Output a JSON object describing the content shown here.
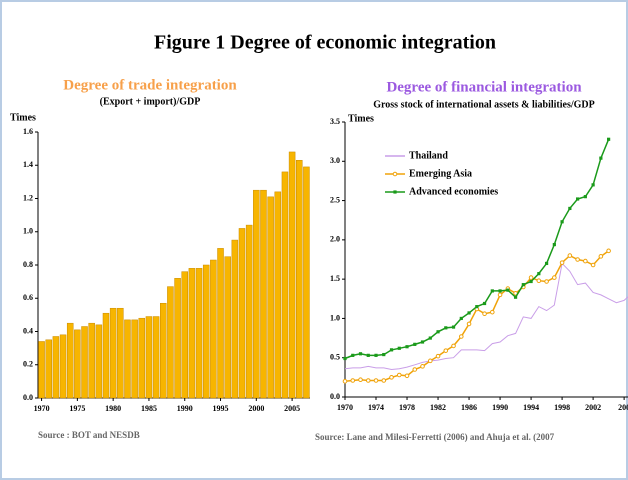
{
  "title": "Figure 1  Degree of economic integration",
  "chart_data": [
    {
      "type": "bar",
      "title": "Degree of trade integration",
      "subtitle": "(Export + import)/GDP",
      "y_label": "Times",
      "source": "Source : BOT and NESDB",
      "color": "#f7b500",
      "categories": [
        "1970",
        null,
        null,
        null,
        null,
        "1975",
        null,
        null,
        null,
        null,
        "1980",
        null,
        null,
        null,
        null,
        "1985",
        null,
        null,
        null,
        null,
        "1990",
        null,
        null,
        null,
        null,
        "1995",
        null,
        null,
        null,
        null,
        "2000",
        null,
        null,
        null,
        null,
        "2005",
        null,
        null
      ],
      "values": [
        0.34,
        0.35,
        0.37,
        0.38,
        0.45,
        0.41,
        0.43,
        0.45,
        0.44,
        0.51,
        0.54,
        0.54,
        0.47,
        0.47,
        0.48,
        0.49,
        0.49,
        0.57,
        0.67,
        0.72,
        0.76,
        0.78,
        0.78,
        0.8,
        0.83,
        0.9,
        0.85,
        0.95,
        1.02,
        1.04,
        1.25,
        1.25,
        1.21,
        1.24,
        1.36,
        1.48,
        1.43,
        1.39
      ],
      "ylim": [
        0,
        1.6
      ],
      "yticks": [
        {
          "value": 0,
          "label": "0.0"
        },
        0.2,
        0.4,
        0.6,
        0.8,
        {
          "value": 1,
          "label": "1.0"
        },
        1.2,
        1.4,
        1.6
      ]
    },
    {
      "type": "line",
      "title": "Degree of financial integration",
      "subtitle": "Gross stock of international assets & liabilities/GDP",
      "y_label": "Times",
      "source": "Source: Lane and Milesi-Ferretti (2006) and Ahuja et al. (2007",
      "x": [
        1970,
        1971,
        1972,
        1973,
        1974,
        1975,
        1976,
        1977,
        1978,
        1979,
        1980,
        1981,
        1982,
        1983,
        1984,
        1985,
        1986,
        1987,
        1988,
        1989,
        1990,
        1991,
        1992,
        1993,
        1994,
        1995,
        1996,
        1997,
        1998,
        1999,
        2000,
        2001,
        2002,
        2003,
        2004,
        2005,
        2006,
        2007
      ],
      "series": [
        {
          "name": "Thailand",
          "color": "#c99ee8",
          "marker": "none",
          "values": [
            0.36,
            0.37,
            0.37,
            0.39,
            0.37,
            0.37,
            0.35,
            0.36,
            0.38,
            0.41,
            0.44,
            0.46,
            0.47,
            0.49,
            0.5,
            0.6,
            0.6,
            0.6,
            0.59,
            0.68,
            0.7,
            0.78,
            0.81,
            1.02,
            1.0,
            1.15,
            1.1,
            1.17,
            1.7,
            1.6,
            1.43,
            1.45,
            1.33,
            1.3,
            1.25,
            1.2,
            1.23,
            1.32
          ]
        },
        {
          "name": "Emerging Asia",
          "color": "#f0a30a",
          "marker": "circle",
          "values": [
            0.2,
            0.21,
            0.22,
            0.21,
            0.21,
            0.21,
            0.25,
            0.28,
            0.27,
            0.35,
            0.39,
            0.46,
            0.52,
            0.59,
            0.65,
            0.77,
            0.93,
            1.12,
            1.06,
            1.08,
            1.3,
            1.38,
            1.32,
            1.4,
            1.52,
            1.48,
            1.47,
            1.52,
            1.71,
            1.8,
            1.75,
            1.73,
            1.68,
            1.79,
            1.86,
            null,
            null,
            null
          ]
        },
        {
          "name": "Advanced economies",
          "color": "#1a9a1a",
          "marker": "square",
          "values": [
            0.49,
            0.53,
            0.55,
            0.53,
            0.53,
            0.54,
            0.6,
            0.62,
            0.64,
            0.67,
            0.7,
            0.75,
            0.83,
            0.88,
            0.89,
            1.0,
            1.07,
            1.15,
            1.19,
            1.35,
            1.35,
            1.36,
            1.27,
            1.43,
            1.47,
            1.57,
            1.7,
            1.94,
            2.23,
            2.4,
            2.52,
            2.55,
            2.7,
            3.04,
            3.28,
            null,
            null,
            null
          ]
        }
      ],
      "xlim": [
        1970,
        2006.5
      ],
      "xticks": [
        1970,
        1974,
        1978,
        1982,
        1986,
        1990,
        1994,
        1998,
        2002,
        {
          "value": 2006,
          "label": "200"
        }
      ],
      "ylim": [
        0,
        3.5
      ],
      "yticks": [
        {
          "value": 0,
          "label": "0.0"
        },
        0.5,
        {
          "value": 1,
          "label": "1.0"
        },
        1.5,
        {
          "value": 2,
          "label": "2.0"
        },
        2.5,
        {
          "value": 3,
          "label": "3.0"
        },
        3.5
      ]
    }
  ]
}
